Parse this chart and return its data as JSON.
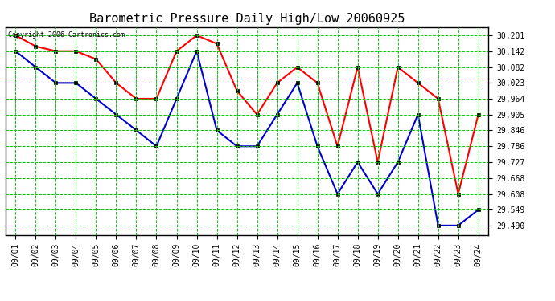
{
  "title": "Barometric Pressure Daily High/Low 20060925",
  "copyright": "Copyright 2006 Cartronics.com",
  "dates": [
    "09/01",
    "09/02",
    "09/03",
    "09/04",
    "09/05",
    "09/06",
    "09/07",
    "09/08",
    "09/09",
    "09/10",
    "09/11",
    "09/12",
    "09/13",
    "09/14",
    "09/15",
    "09/16",
    "09/17",
    "09/18",
    "09/19",
    "09/20",
    "09/21",
    "09/22",
    "09/23",
    "09/24"
  ],
  "high": [
    30.201,
    30.16,
    30.142,
    30.142,
    30.112,
    30.023,
    29.964,
    29.964,
    30.142,
    30.201,
    30.17,
    29.994,
    29.905,
    30.023,
    30.082,
    30.023,
    29.786,
    30.082,
    29.727,
    30.082,
    30.023,
    29.964,
    29.608,
    29.905
  ],
  "low": [
    30.142,
    30.082,
    30.023,
    30.023,
    29.964,
    29.905,
    29.846,
    29.786,
    29.964,
    30.142,
    29.846,
    29.786,
    29.786,
    29.905,
    30.023,
    29.786,
    29.608,
    29.727,
    29.608,
    29.727,
    29.905,
    29.49,
    29.49,
    29.549
  ],
  "yticks": [
    29.49,
    29.549,
    29.608,
    29.668,
    29.727,
    29.786,
    29.846,
    29.905,
    29.964,
    30.023,
    30.082,
    30.142,
    30.201
  ],
  "ylim": [
    29.455,
    30.232
  ],
  "high_color": "#ff0000",
  "low_color": "#0000cc",
  "grid_color": "#00cc00",
  "bg_color": "#ffffff",
  "title_fontsize": 11,
  "marker": "s",
  "markersize": 3,
  "linewidth": 1.5
}
